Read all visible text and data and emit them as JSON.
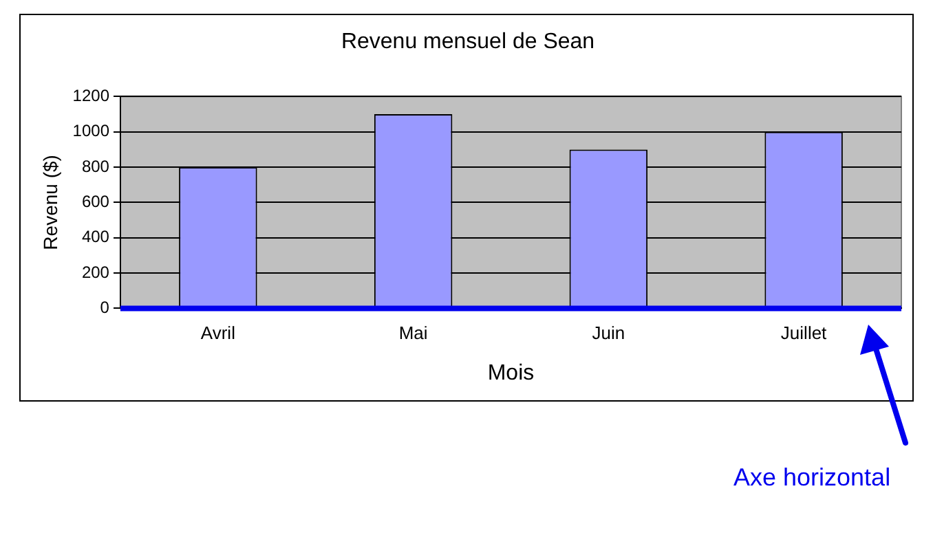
{
  "chart_data": {
    "type": "bar",
    "title": "Revenu mensuel de Sean",
    "xlabel": "Mois",
    "ylabel": "Revenu ($)",
    "categories": [
      "Avril",
      "Mai",
      "Juin",
      "Juillet"
    ],
    "values": [
      800,
      1100,
      900,
      1000
    ],
    "color": "#9999ff",
    "ylim": [
      0,
      1200
    ],
    "yticks": [
      0,
      200,
      400,
      600,
      800,
      1000,
      1200
    ],
    "grid": "y",
    "legend": false,
    "annotations": [
      "Axe horizontal"
    ]
  }
}
